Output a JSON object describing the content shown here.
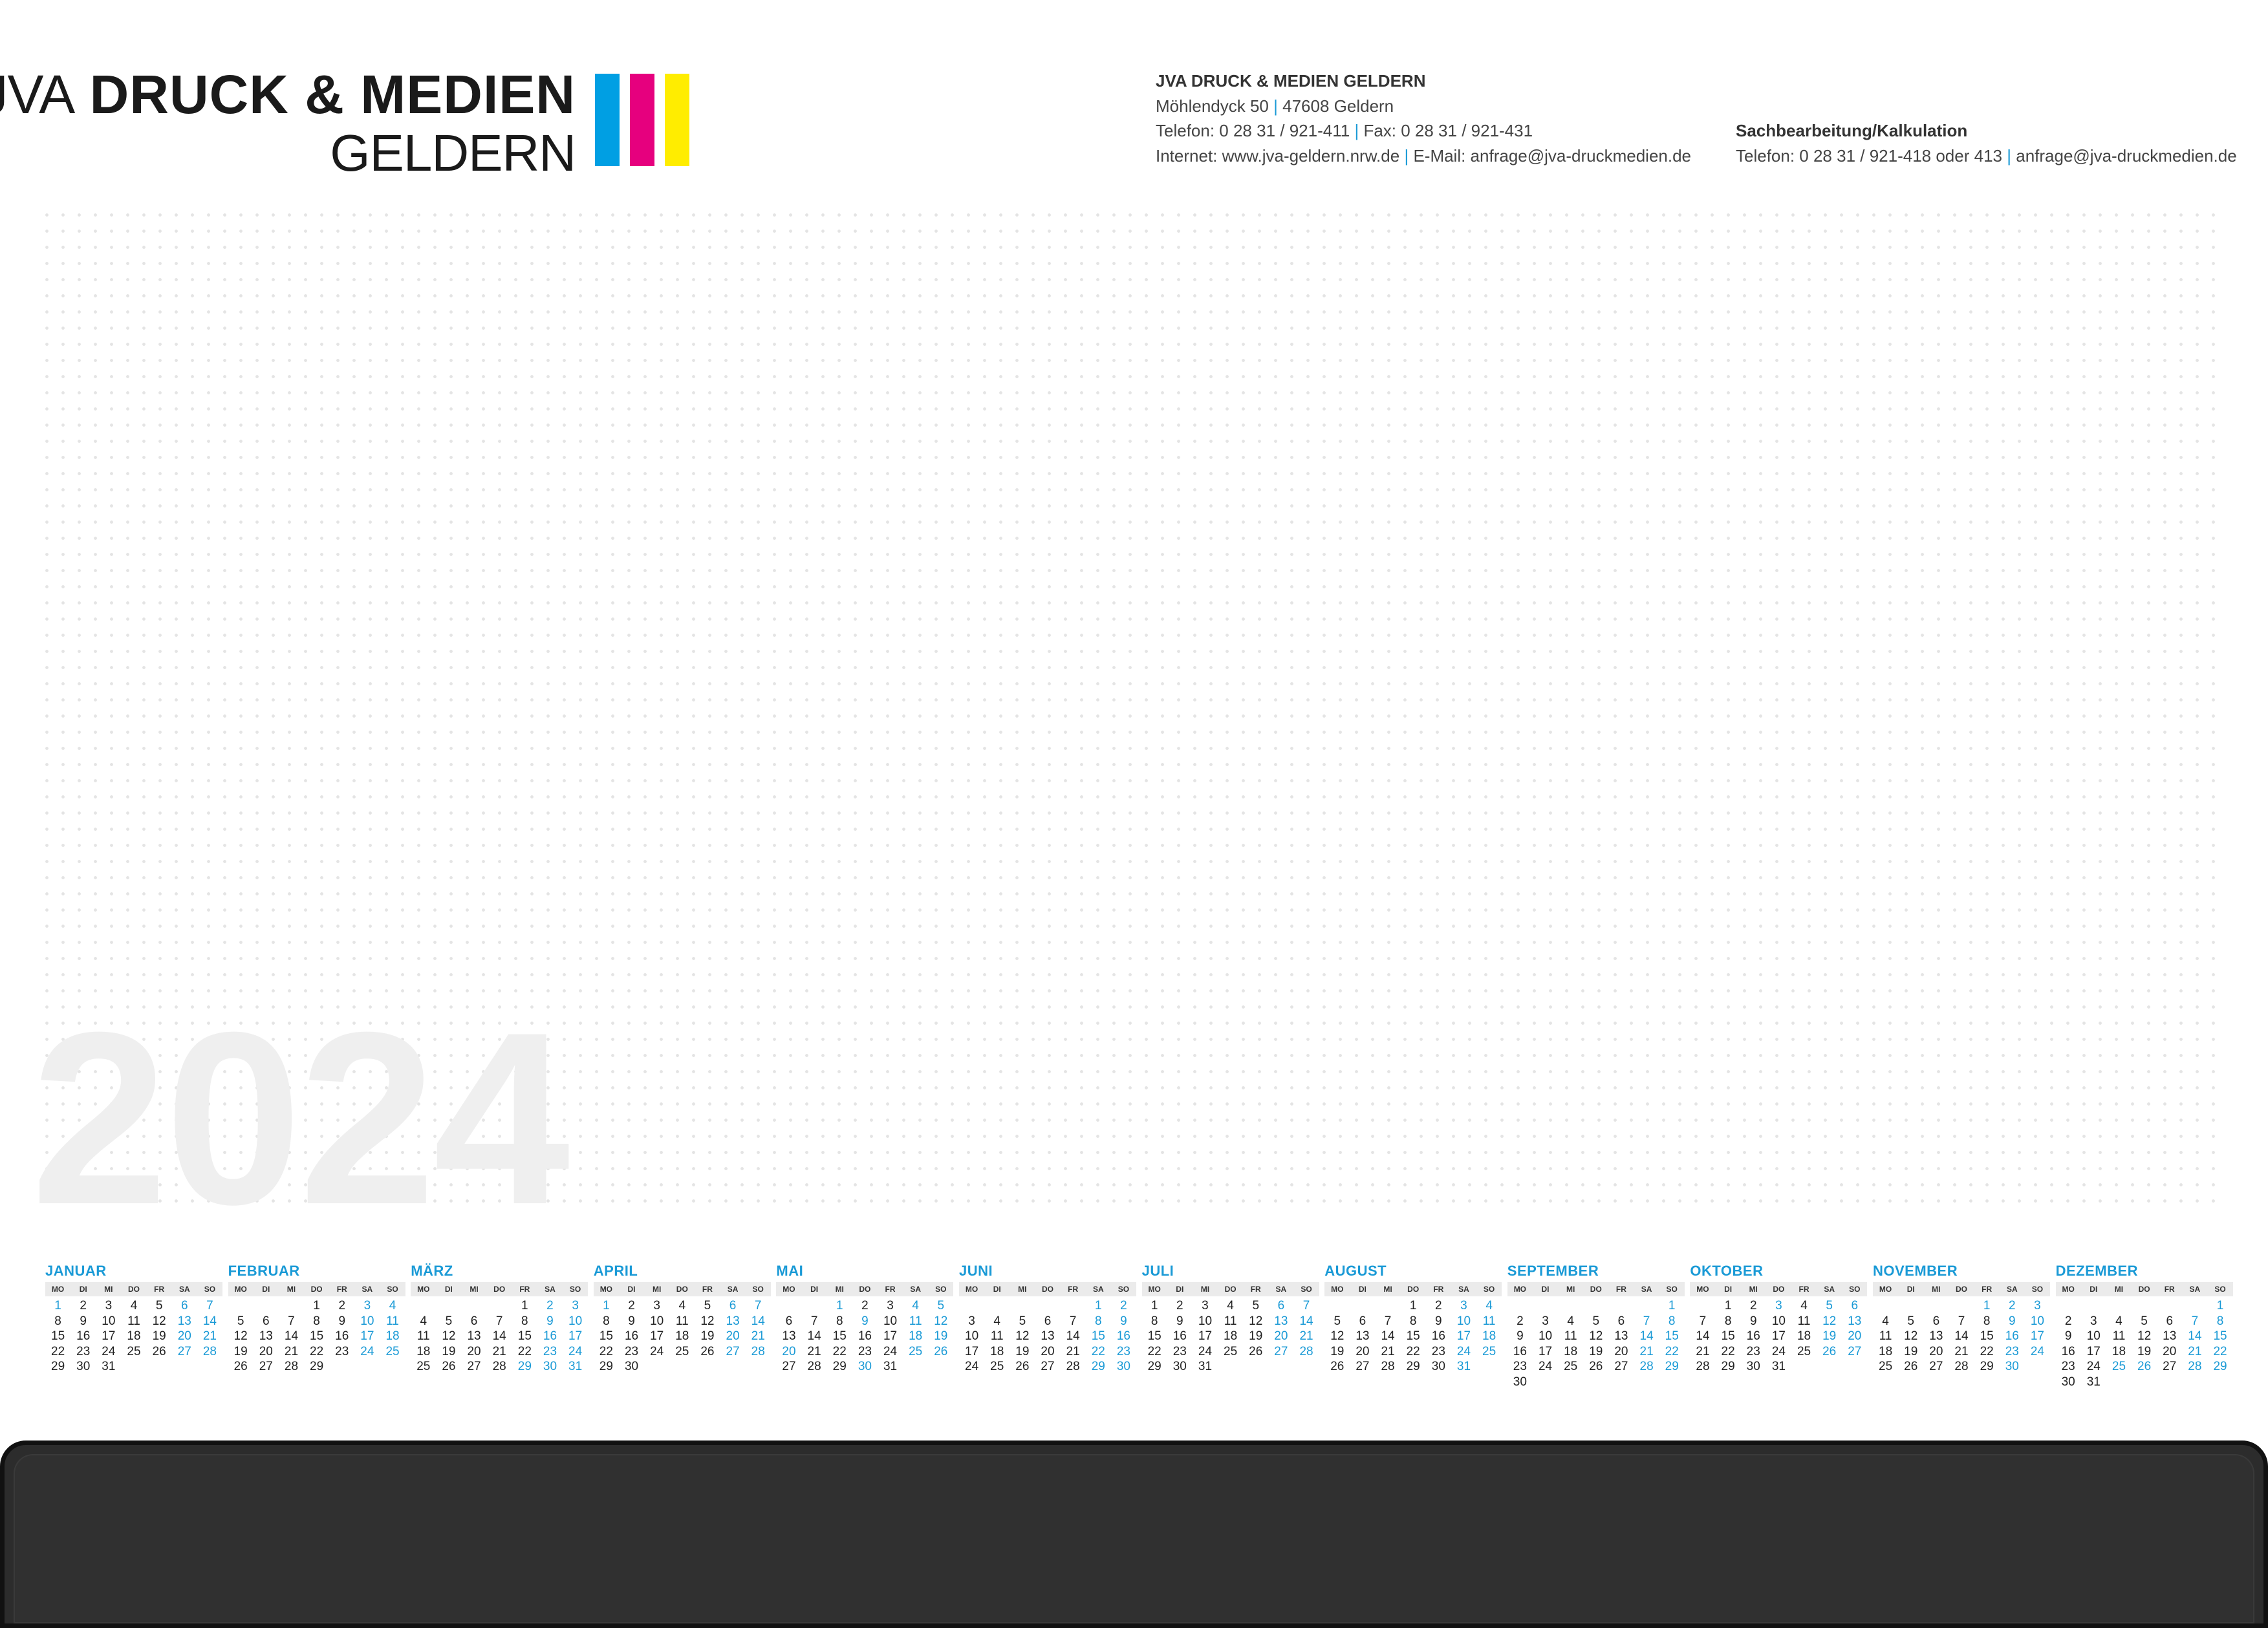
{
  "logo": {
    "light": "JVA",
    "bold": "DRUCK & MEDIEN",
    "line2": "GELDERN",
    "colors": [
      "#009fe3",
      "#e6007e",
      "#ffed00"
    ]
  },
  "contact": {
    "company": "JVA DRUCK & MEDIEN GELDERN",
    "street": "Möhlendyck 50",
    "city": "47608 Geldern",
    "phone": "Telefon:  0 28 31 / 921-411",
    "fax": "Fax: 0 28 31 / 921-431",
    "internet": "Internet: www.jva-geldern.nrw.de",
    "email": "E-Mail: anfrage@jva-druckmedien.de",
    "separator": "|"
  },
  "contact2": {
    "title": "Sachbearbeitung/Kalkulation",
    "phone": "Telefon: 0 28 31 / 921-418 oder 413",
    "email": "anfrage@jva-druckmedien.de",
    "separator": "|"
  },
  "year": "2024",
  "weekdays": [
    "MO",
    "DI",
    "MI",
    "DO",
    "FR",
    "SA",
    "SO"
  ],
  "accent_color": "#1a9ad6",
  "months": [
    {
      "name": "JANUAR",
      "offset": 0,
      "days": 31
    },
    {
      "name": "FEBRUAR",
      "offset": 3,
      "days": 29
    },
    {
      "name": "MÄRZ",
      "offset": 4,
      "days": 31
    },
    {
      "name": "APRIL",
      "offset": 0,
      "days": 30
    },
    {
      "name": "MAI",
      "offset": 2,
      "days": 31
    },
    {
      "name": "JUNI",
      "offset": 5,
      "days": 30
    },
    {
      "name": "JULI",
      "offset": 0,
      "days": 31
    },
    {
      "name": "AUGUST",
      "offset": 3,
      "days": 31
    },
    {
      "name": "SEPTEMBER",
      "offset": 6,
      "days": 30
    },
    {
      "name": "OKTOBER",
      "offset": 1,
      "days": 31
    },
    {
      "name": "NOVEMBER",
      "offset": 4,
      "days": 30
    },
    {
      "name": "DEZEMBER",
      "offset": 6,
      "days": 31
    }
  ],
  "highlighted_days": {
    "JANUAR": [
      1
    ],
    "MÄRZ": [
      29
    ],
    "APRIL": [
      1
    ],
    "MAI": [
      1,
      9,
      20,
      30
    ],
    "OKTOBER": [
      3
    ],
    "NOVEMBER": [
      1
    ],
    "DEZEMBER": [
      25,
      26
    ]
  }
}
